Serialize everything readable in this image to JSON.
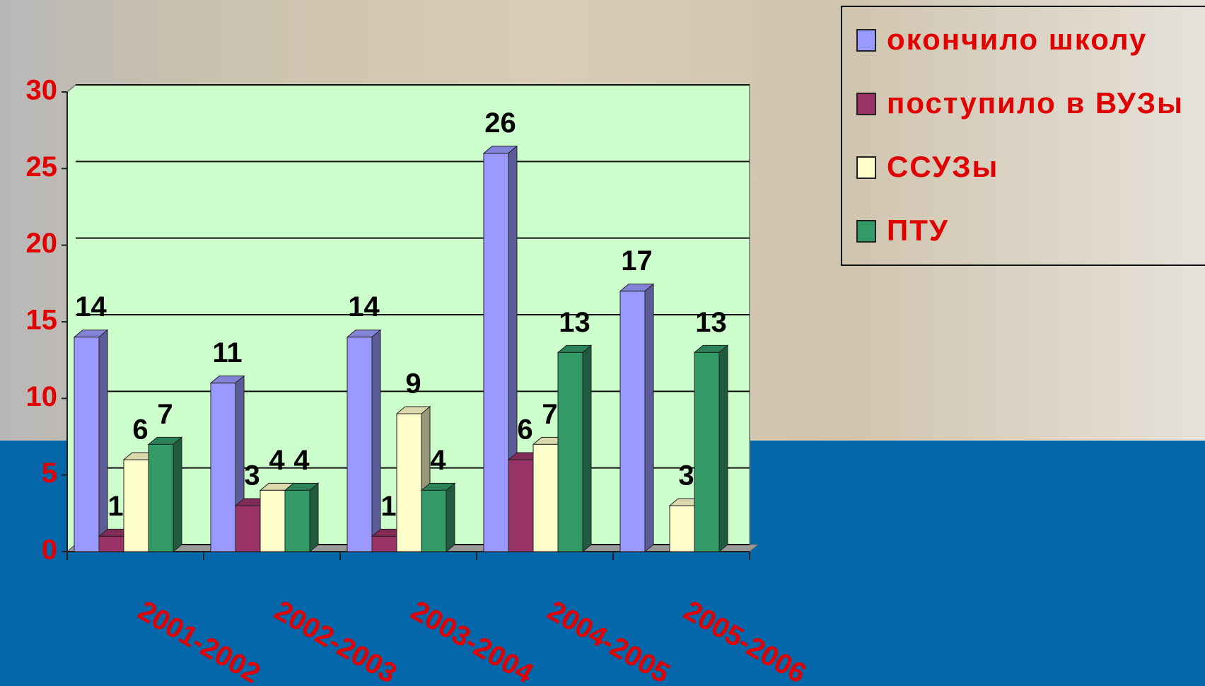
{
  "chart_data": {
    "type": "bar3d",
    "categories": [
      "2001-2002",
      "2002-2003",
      "2003-2004",
      "2004-2005",
      "2005-2006"
    ],
    "series": [
      {
        "name": "окончило школу",
        "color": "#9999ff",
        "values": [
          14,
          11,
          14,
          26,
          17
        ]
      },
      {
        "name": "поступило в ВУЗы",
        "color": "#993366",
        "values": [
          1,
          3,
          1,
          6,
          null
        ]
      },
      {
        "name": "ССУЗы",
        "color": "#ffffcc",
        "values": [
          6,
          4,
          9,
          7,
          3
        ]
      },
      {
        "name": "ПТУ",
        "color": "#339966",
        "values": [
          7,
          4,
          4,
          13,
          13
        ]
      }
    ],
    "ylim": [
      0,
      30
    ],
    "yticks": [
      0,
      5,
      10,
      15,
      20,
      25,
      30
    ],
    "grid": true
  }
}
